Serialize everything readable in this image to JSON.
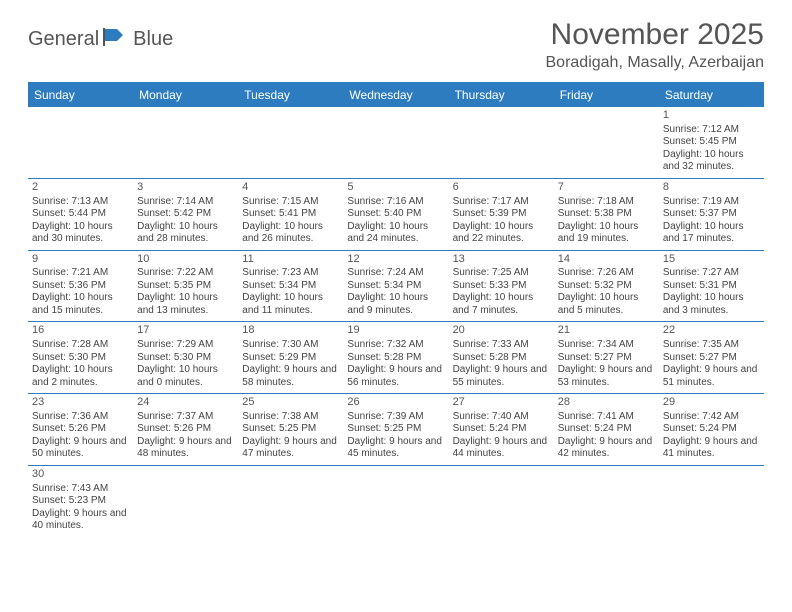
{
  "logo": {
    "part1": "General",
    "part2": "Blue",
    "icon_color": "#2e7cc0",
    "text_color": "#555"
  },
  "title": "November 2025",
  "location": "Boradigah, Masally, Azerbaijan",
  "header_color": "#2e7cc0",
  "dow": [
    "Sunday",
    "Monday",
    "Tuesday",
    "Wednesday",
    "Thursday",
    "Friday",
    "Saturday"
  ],
  "weeks": [
    [
      null,
      null,
      null,
      null,
      null,
      null,
      {
        "n": "1",
        "sr": "7:12 AM",
        "ss": "5:45 PM",
        "dl": "10 hours and 32 minutes."
      }
    ],
    [
      {
        "n": "2",
        "sr": "7:13 AM",
        "ss": "5:44 PM",
        "dl": "10 hours and 30 minutes."
      },
      {
        "n": "3",
        "sr": "7:14 AM",
        "ss": "5:42 PM",
        "dl": "10 hours and 28 minutes."
      },
      {
        "n": "4",
        "sr": "7:15 AM",
        "ss": "5:41 PM",
        "dl": "10 hours and 26 minutes."
      },
      {
        "n": "5",
        "sr": "7:16 AM",
        "ss": "5:40 PM",
        "dl": "10 hours and 24 minutes."
      },
      {
        "n": "6",
        "sr": "7:17 AM",
        "ss": "5:39 PM",
        "dl": "10 hours and 22 minutes."
      },
      {
        "n": "7",
        "sr": "7:18 AM",
        "ss": "5:38 PM",
        "dl": "10 hours and 19 minutes."
      },
      {
        "n": "8",
        "sr": "7:19 AM",
        "ss": "5:37 PM",
        "dl": "10 hours and 17 minutes."
      }
    ],
    [
      {
        "n": "9",
        "sr": "7:21 AM",
        "ss": "5:36 PM",
        "dl": "10 hours and 15 minutes."
      },
      {
        "n": "10",
        "sr": "7:22 AM",
        "ss": "5:35 PM",
        "dl": "10 hours and 13 minutes."
      },
      {
        "n": "11",
        "sr": "7:23 AM",
        "ss": "5:34 PM",
        "dl": "10 hours and 11 minutes."
      },
      {
        "n": "12",
        "sr": "7:24 AM",
        "ss": "5:34 PM",
        "dl": "10 hours and 9 minutes."
      },
      {
        "n": "13",
        "sr": "7:25 AM",
        "ss": "5:33 PM",
        "dl": "10 hours and 7 minutes."
      },
      {
        "n": "14",
        "sr": "7:26 AM",
        "ss": "5:32 PM",
        "dl": "10 hours and 5 minutes."
      },
      {
        "n": "15",
        "sr": "7:27 AM",
        "ss": "5:31 PM",
        "dl": "10 hours and 3 minutes."
      }
    ],
    [
      {
        "n": "16",
        "sr": "7:28 AM",
        "ss": "5:30 PM",
        "dl": "10 hours and 2 minutes."
      },
      {
        "n": "17",
        "sr": "7:29 AM",
        "ss": "5:30 PM",
        "dl": "10 hours and 0 minutes."
      },
      {
        "n": "18",
        "sr": "7:30 AM",
        "ss": "5:29 PM",
        "dl": "9 hours and 58 minutes."
      },
      {
        "n": "19",
        "sr": "7:32 AM",
        "ss": "5:28 PM",
        "dl": "9 hours and 56 minutes."
      },
      {
        "n": "20",
        "sr": "7:33 AM",
        "ss": "5:28 PM",
        "dl": "9 hours and 55 minutes."
      },
      {
        "n": "21",
        "sr": "7:34 AM",
        "ss": "5:27 PM",
        "dl": "9 hours and 53 minutes."
      },
      {
        "n": "22",
        "sr": "7:35 AM",
        "ss": "5:27 PM",
        "dl": "9 hours and 51 minutes."
      }
    ],
    [
      {
        "n": "23",
        "sr": "7:36 AM",
        "ss": "5:26 PM",
        "dl": "9 hours and 50 minutes."
      },
      {
        "n": "24",
        "sr": "7:37 AM",
        "ss": "5:26 PM",
        "dl": "9 hours and 48 minutes."
      },
      {
        "n": "25",
        "sr": "7:38 AM",
        "ss": "5:25 PM",
        "dl": "9 hours and 47 minutes."
      },
      {
        "n": "26",
        "sr": "7:39 AM",
        "ss": "5:25 PM",
        "dl": "9 hours and 45 minutes."
      },
      {
        "n": "27",
        "sr": "7:40 AM",
        "ss": "5:24 PM",
        "dl": "9 hours and 44 minutes."
      },
      {
        "n": "28",
        "sr": "7:41 AM",
        "ss": "5:24 PM",
        "dl": "9 hours and 42 minutes."
      },
      {
        "n": "29",
        "sr": "7:42 AM",
        "ss": "5:24 PM",
        "dl": "9 hours and 41 minutes."
      }
    ],
    [
      {
        "n": "30",
        "sr": "7:43 AM",
        "ss": "5:23 PM",
        "dl": "9 hours and 40 minutes."
      },
      null,
      null,
      null,
      null,
      null,
      null
    ]
  ],
  "labels": {
    "sunrise": "Sunrise: ",
    "sunset": "Sunset: ",
    "daylight": "Daylight: "
  }
}
